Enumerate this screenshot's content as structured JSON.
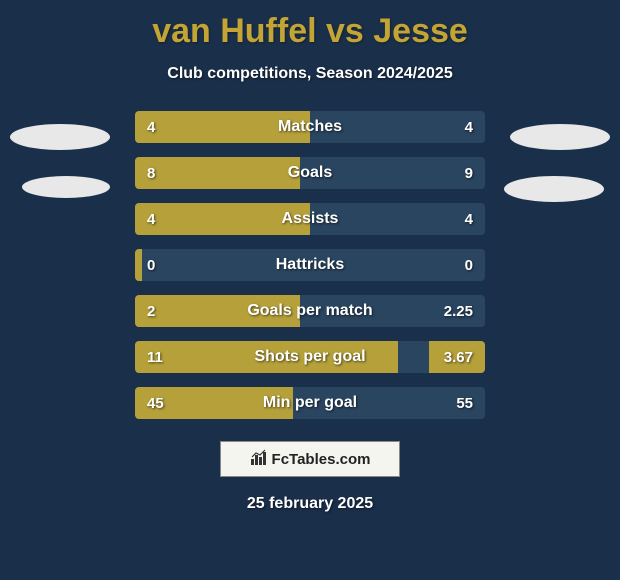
{
  "title": "van Huffel vs Jesse",
  "subtitle": "Club competitions, Season 2024/2025",
  "date": "25 february 2025",
  "logo_text": "FcTables.com",
  "colors": {
    "background": "#1a2f4a",
    "accent": "#c4a534",
    "bar_bg": "#2a4560",
    "bar_fill": "#b5a03a",
    "text": "#ffffff",
    "ellipse": "#e8e8e8",
    "logo_bg": "#f5f5f0"
  },
  "bars": [
    {
      "label": "Matches",
      "left": "4",
      "right": "4",
      "left_pct": 50,
      "right_pct": 0
    },
    {
      "label": "Goals",
      "left": "8",
      "right": "9",
      "left_pct": 47,
      "right_pct": 0
    },
    {
      "label": "Assists",
      "left": "4",
      "right": "4",
      "left_pct": 50,
      "right_pct": 0
    },
    {
      "label": "Hattricks",
      "left": "0",
      "right": "0",
      "left_pct": 2,
      "right_pct": 0
    },
    {
      "label": "Goals per match",
      "left": "2",
      "right": "2.25",
      "left_pct": 47,
      "right_pct": 0
    },
    {
      "label": "Shots per goal",
      "left": "11",
      "right": "3.67",
      "left_pct": 75,
      "right_pct": 16
    },
    {
      "label": "Min per goal",
      "left": "45",
      "right": "55",
      "left_pct": 45,
      "right_pct": 0
    }
  ]
}
